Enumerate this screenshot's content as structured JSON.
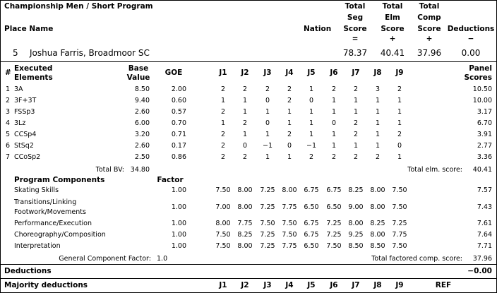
{
  "header": {
    "event": "Championship Men / Short Program",
    "place_name": "Place Name",
    "nation": "Nation",
    "total_seg": [
      "Total",
      "Seg",
      "Score",
      "="
    ],
    "total_elm": [
      "Total",
      "Elm",
      "Score",
      "+"
    ],
    "total_comp": [
      "Total",
      "Comp",
      "Score",
      "+"
    ],
    "deductions": [
      "Deductions",
      "−"
    ]
  },
  "skater": {
    "place": "5",
    "name": "Joshua Farris, Broadmoor SC",
    "seg": "78.37",
    "elm": "40.41",
    "comp": "37.96",
    "ded": "0.00"
  },
  "elements_header": {
    "num": "#",
    "executed": [
      "Executed",
      "Elements"
    ],
    "base": [
      "Base",
      "Value"
    ],
    "goe": "GOE",
    "judges": [
      "J1",
      "J2",
      "J3",
      "J4",
      "J5",
      "J6",
      "J7",
      "J8",
      "J9"
    ],
    "panel": [
      "Panel",
      "Scores"
    ]
  },
  "elements": [
    {
      "num": "1",
      "name": "3A",
      "base": "8.50",
      "goe": "2.00",
      "judges": [
        "2",
        "2",
        "2",
        "2",
        "1",
        "2",
        "2",
        "3",
        "2"
      ],
      "panel": "10.50"
    },
    {
      "num": "2",
      "name": "3F+3T",
      "base": "9.40",
      "goe": "0.60",
      "judges": [
        "1",
        "1",
        "0",
        "2",
        "0",
        "1",
        "1",
        "1",
        "1"
      ],
      "panel": "10.00"
    },
    {
      "num": "3",
      "name": "FSSp3",
      "base": "2.60",
      "goe": "0.57",
      "judges": [
        "2",
        "1",
        "1",
        "1",
        "1",
        "1",
        "1",
        "1",
        "1"
      ],
      "panel": "3.17"
    },
    {
      "num": "4",
      "name": "3Lz",
      "base": "6.00",
      "goe": "0.70",
      "judges": [
        "1",
        "2",
        "0",
        "1",
        "1",
        "0",
        "2",
        "1",
        "1"
      ],
      "panel": "6.70"
    },
    {
      "num": "5",
      "name": "CCSp4",
      "base": "3.20",
      "goe": "0.71",
      "judges": [
        "2",
        "1",
        "1",
        "2",
        "1",
        "1",
        "2",
        "1",
        "2"
      ],
      "panel": "3.91"
    },
    {
      "num": "6",
      "name": "StSq2",
      "base": "2.60",
      "goe": "0.17",
      "judges": [
        "2",
        "0",
        "−1",
        "0",
        "−1",
        "1",
        "1",
        "1",
        "0"
      ],
      "panel": "2.77"
    },
    {
      "num": "7",
      "name": "CCoSp2",
      "base": "2.50",
      "goe": "0.86",
      "judges": [
        "2",
        "2",
        "1",
        "1",
        "2",
        "2",
        "2",
        "2",
        "1"
      ],
      "panel": "3.36"
    }
  ],
  "total_bv": {
    "label": "Total BV:",
    "value": "34.80"
  },
  "total_elm": {
    "label": "Total elm. score:",
    "value": "40.41"
  },
  "components_header": {
    "title": "Program Components",
    "factor": "Factor"
  },
  "components": [
    {
      "name": [
        "Skating Skills"
      ],
      "factor": "1.00",
      "judges": [
        "7.50",
        "8.00",
        "7.25",
        "8.00",
        "6.75",
        "6.75",
        "8.25",
        "8.00",
        "7.50"
      ],
      "panel": "7.57"
    },
    {
      "name": [
        "Transitions/Linking",
        "Footwork/Movements"
      ],
      "factor": "1.00",
      "judges": [
        "7.00",
        "8.00",
        "7.25",
        "7.75",
        "6.50",
        "6.50",
        "9.00",
        "8.00",
        "7.50"
      ],
      "panel": "7.43"
    },
    {
      "name": [
        "Performance/Execution"
      ],
      "factor": "1.00",
      "judges": [
        "8.00",
        "7.75",
        "7.50",
        "7.50",
        "6.75",
        "7.25",
        "8.00",
        "8.25",
        "7.25"
      ],
      "panel": "7.61"
    },
    {
      "name": [
        "Choreography/Composition"
      ],
      "factor": "1.00",
      "judges": [
        "7.50",
        "8.25",
        "7.25",
        "7.50",
        "6.75",
        "7.25",
        "9.25",
        "8.00",
        "7.75"
      ],
      "panel": "7.64"
    },
    {
      "name": [
        "Interpretation"
      ],
      "factor": "1.00",
      "judges": [
        "7.50",
        "8.00",
        "7.25",
        "7.75",
        "6.50",
        "7.50",
        "8.50",
        "8.50",
        "7.50"
      ],
      "panel": "7.71"
    }
  ],
  "general_factor": {
    "label": "General Component Factor:",
    "value": "1.0"
  },
  "total_comp": {
    "label": "Total factored comp. score:",
    "value": "37.96"
  },
  "deductions_row": {
    "label": "Deductions",
    "value": "−0.00"
  },
  "majority": {
    "label": "Majority deductions",
    "judges": [
      "J1",
      "J2",
      "J3",
      "J4",
      "J5",
      "J6",
      "J7",
      "J8",
      "J9"
    ],
    "ref": "REF"
  }
}
